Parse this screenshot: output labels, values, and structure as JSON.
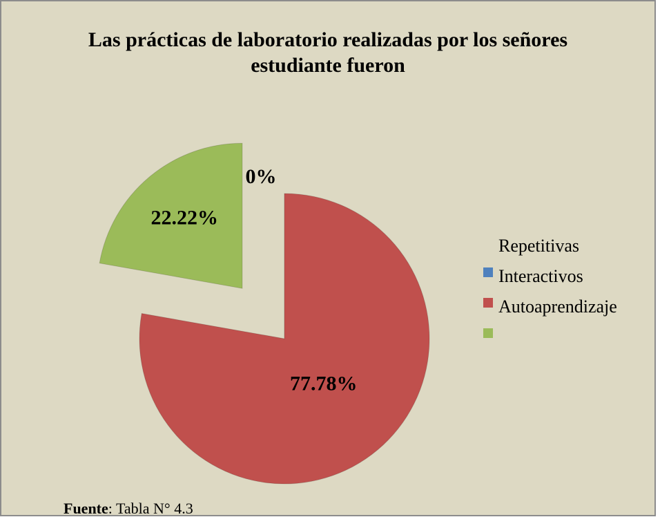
{
  "chart_data": {
    "type": "pie",
    "title": "Las prácticas de laboratorio realizadas por los señores estudiante fueron",
    "categories": [
      "Repetitivas",
      "Interactivos",
      "Autoaprendizaje"
    ],
    "values": [
      0,
      77.78,
      22.22
    ],
    "value_labels": [
      "0%",
      "77.78%",
      "22.22%"
    ],
    "colors": [
      "#4f81bd",
      "#c0504d",
      "#9bbb59"
    ],
    "exploded": [
      false,
      false,
      true
    ],
    "legend": "right",
    "source_label": "Fuente",
    "source_text": ": Tabla N° 4.3"
  }
}
